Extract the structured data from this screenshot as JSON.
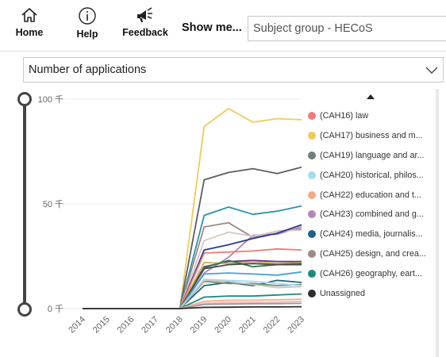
{
  "toolbar": {
    "home_label": "Home",
    "help_label": "Help",
    "feedback_label": "Feedback",
    "show_me_label": "Show me...",
    "subject_group_placeholder": "Subject group - HECoS"
  },
  "measure": {
    "selected": "Number of applications"
  },
  "icons": {
    "home": "home-icon",
    "help": "info-icon",
    "feedback": "feedback-megaphone-icon",
    "dropdown": "chevron-down-icon",
    "legend_scroll": "triangle-up-icon"
  },
  "chart_data": {
    "type": "line",
    "categories": [
      "2014",
      "2015",
      "2016",
      "2017",
      "2018",
      "2019",
      "2020",
      "2021",
      "2022",
      "2023"
    ],
    "ylim": [
      0,
      100000
    ],
    "y_ticks": [
      {
        "value": 0,
        "label": "0 千"
      },
      {
        "value": 50000,
        "label": "50 千"
      },
      {
        "value": 100000,
        "label": "100 千"
      }
    ],
    "grid": true,
    "legend_position": "right",
    "legend": [
      {
        "name": "(CAH16) law",
        "color": "#f07a7a"
      },
      {
        "name": "(CAH17) business and m...",
        "color": "#efca5a"
      },
      {
        "name": "(CAH19) language and ar...",
        "color": "#6f7f7a"
      },
      {
        "name": "(CAH20) historical, philos...",
        "color": "#a6dcf2"
      },
      {
        "name": "(CAH22) education and t...",
        "color": "#f7ab85"
      },
      {
        "name": "(CAH23) combined and g...",
        "color": "#b287b8"
      },
      {
        "name": "(CAH24) media, journalis...",
        "color": "#1f6480"
      },
      {
        "name": "(CAH25) design, and crea...",
        "color": "#a08a84"
      },
      {
        "name": "(CAH26) geography, eart...",
        "color": "#1a8c7d"
      },
      {
        "name": "Unassigned",
        "color": "#2b2f33"
      }
    ],
    "series": [
      {
        "color": "#efca5a",
        "values": [
          0,
          0,
          0,
          0,
          0,
          87000,
          95500,
          89000,
          90700,
          90200
        ]
      },
      {
        "color": "#5a5f61",
        "values": [
          0,
          0,
          0,
          0,
          0,
          61500,
          65000,
          66800,
          64500,
          67500
        ]
      },
      {
        "color": "#2e91ad",
        "values": [
          0,
          0,
          0,
          0,
          0,
          44500,
          48500,
          45000,
          46500,
          49000
        ]
      },
      {
        "color": "#a08a84",
        "values": [
          0,
          0,
          0,
          0,
          0,
          39000,
          41000,
          34000,
          37000,
          38000
        ]
      },
      {
        "color": "#b287b8",
        "values": [
          0,
          0,
          0,
          0,
          0,
          17000,
          24500,
          35000,
          35500,
          39000
        ]
      },
      {
        "color": "#d9c6c4",
        "values": [
          0,
          0,
          0,
          0,
          0,
          32500,
          36500,
          34500,
          37000,
          37500
        ]
      },
      {
        "color": "#2b3a8c",
        "values": [
          0,
          0,
          0,
          0,
          0,
          28000,
          30500,
          33500,
          36000,
          40000
        ]
      },
      {
        "color": "#f07a7a",
        "values": [
          0,
          0,
          0,
          0,
          0,
          26500,
          27000,
          27500,
          28500,
          28000
        ]
      },
      {
        "color": "#6a2a8f",
        "values": [
          0,
          0,
          0,
          0,
          0,
          20000,
          22500,
          23000,
          22500,
          22500
        ]
      },
      {
        "color": "#c9b54a",
        "values": [
          0,
          0,
          0,
          0,
          0,
          22000,
          21500,
          22500,
          21500,
          22000
        ]
      },
      {
        "color": "#2c7a4a",
        "values": [
          0,
          0,
          0,
          0,
          0,
          19500,
          23000,
          20000,
          21000,
          21500
        ]
      },
      {
        "color": "#4a4a4a",
        "values": [
          0,
          0,
          0,
          0,
          0,
          19000,
          21000,
          21500,
          21000,
          21000
        ]
      },
      {
        "color": "#4aa0d8",
        "values": [
          0,
          0,
          0,
          0,
          0,
          16500,
          17000,
          16500,
          16000,
          17500
        ]
      },
      {
        "color": "#1f6480",
        "values": [
          0,
          0,
          0,
          0,
          0,
          11000,
          12500,
          11000,
          13500,
          12500
        ]
      },
      {
        "color": "#7a8e6a",
        "values": [
          0,
          0,
          0,
          0,
          0,
          13000,
          12000,
          12000,
          11000,
          11500
        ]
      },
      {
        "color": "#a6dcf2",
        "values": [
          0,
          0,
          0,
          0,
          0,
          14000,
          13500,
          13000,
          12000,
          11000
        ]
      },
      {
        "color": "#c6c6c6",
        "values": [
          0,
          0,
          0,
          0,
          0,
          13500,
          13000,
          11500,
          10000,
          10500
        ]
      },
      {
        "color": "#1a8c7d",
        "values": [
          0,
          0,
          0,
          0,
          0,
          5500,
          6000,
          6000,
          6500,
          7000
        ]
      },
      {
        "color": "#f7ab85",
        "values": [
          0,
          0,
          0,
          0,
          0,
          3500,
          4000,
          4000,
          4200,
          4500
        ]
      },
      {
        "color": "#f2b6c4",
        "values": [
          0,
          0,
          0,
          0,
          0,
          2500,
          3000,
          3000,
          3200,
          3500
        ]
      },
      {
        "color": "#999999",
        "values": [
          0,
          0,
          0,
          0,
          0,
          2000,
          2200,
          2300,
          2400,
          2500
        ]
      },
      {
        "color": "#2b2f33",
        "values": [
          0,
          0,
          0,
          0,
          0,
          600,
          700,
          800,
          800,
          900
        ]
      }
    ]
  }
}
